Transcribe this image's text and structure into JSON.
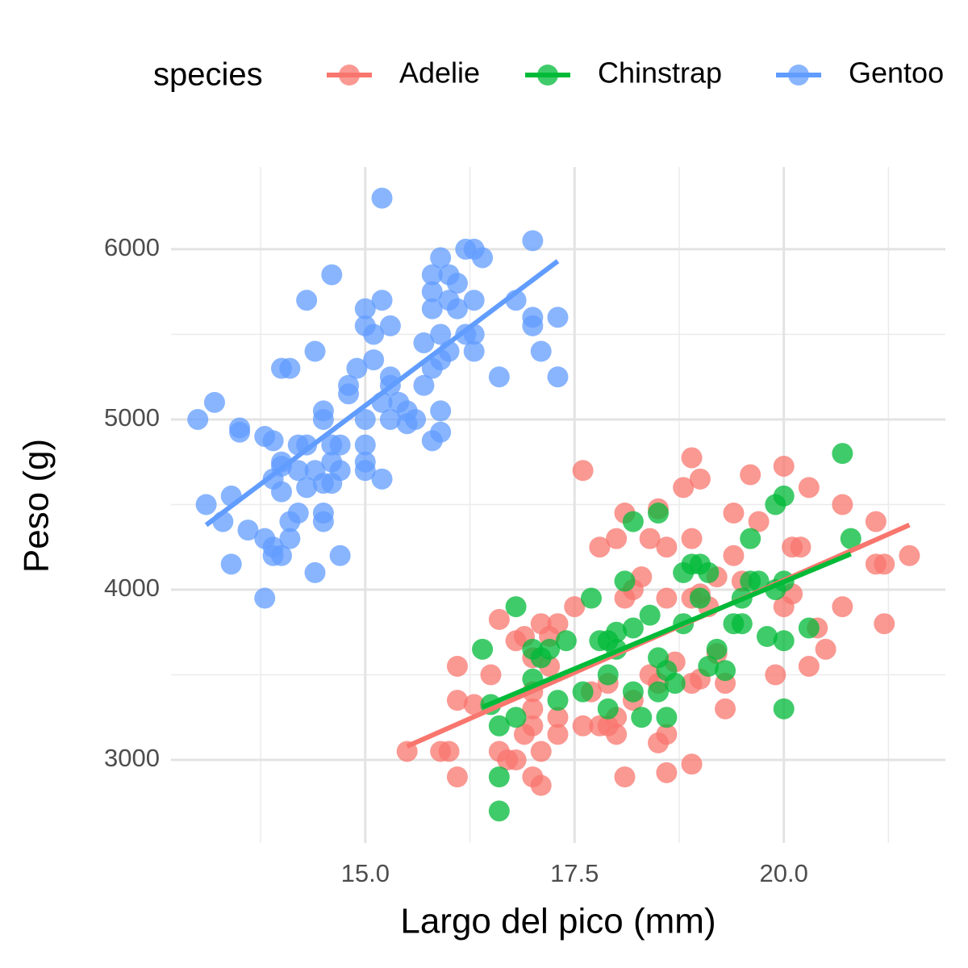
{
  "chart_data": {
    "type": "scatter",
    "x_label": "Largo del pico (mm)",
    "y_label": "Peso (g)",
    "legend_title": "species",
    "legend_position": "top",
    "grid": true,
    "xlim": [
      12.68,
      21.93
    ],
    "ylim": [
      2512,
      6483
    ],
    "xticks": [
      {
        "value": 15,
        "label": "15.0"
      },
      {
        "value": 17.5,
        "label": "17.5"
      },
      {
        "value": 20,
        "label": "20.0"
      }
    ],
    "xminor": [
      13.75,
      16.25,
      18.75,
      21.25
    ],
    "yticks": [
      3000,
      4000,
      5000,
      6000
    ],
    "yminor": [
      3500,
      4500,
      5500
    ],
    "series": [
      {
        "name": "Adelie",
        "color": "#F8766D",
        "x": [
          17.6,
          18.9,
          19.0,
          18.8,
          19.6,
          20.0,
          20.3,
          20.7,
          21.1,
          21.5,
          21.1,
          21.2,
          21.2,
          20.7,
          20.5,
          20.4,
          20.3,
          19.9,
          20.1,
          20.0,
          20.1,
          20.2,
          19.7,
          19.4,
          19.4,
          19.3,
          19.3,
          18.9,
          18.5,
          18.6,
          18.4,
          18.1,
          18.0,
          17.8,
          18.2,
          18.1,
          18.3,
          18.6,
          18.9,
          19.0,
          19.1,
          19.2,
          19.5,
          17.5,
          17.3,
          17.1,
          17.2,
          16.9,
          16.8,
          16.6,
          17.0,
          17.2,
          16.1,
          16.5,
          16.3,
          16.1,
          17.0,
          17.0,
          17.3,
          17.0,
          16.9,
          17.3,
          17.1,
          16.6,
          16.7,
          16.8,
          17.0,
          17.1,
          16.1,
          16.0,
          15.9,
          15.5,
          17.6,
          17.8,
          17.9,
          18.0,
          18.1,
          18.5,
          18.6,
          18.6,
          18.9,
          18.5,
          18.4,
          18.7,
          18.9,
          19.0,
          19.2,
          18.2,
          17.7,
          17.9,
          18.0
        ],
        "y": [
          4700,
          4775,
          4650,
          4600,
          4675,
          4725,
          4600,
          4500,
          4400,
          4200,
          4150,
          4150,
          3800,
          3900,
          3650,
          3775,
          3550,
          3500,
          3975,
          3900,
          4250,
          4250,
          4400,
          4450,
          4200,
          3450,
          3300,
          4300,
          4475,
          4250,
          4300,
          4450,
          4300,
          4250,
          4000,
          3950,
          4075,
          3950,
          3950,
          3975,
          3900,
          4075,
          4050,
          3900,
          3800,
          3800,
          3725,
          3725,
          3700,
          3825,
          3600,
          3550,
          3550,
          3500,
          3325,
          3350,
          3400,
          3300,
          3250,
          3200,
          3150,
          3150,
          3050,
          3050,
          3000,
          3000,
          2900,
          2850,
          2900,
          3050,
          3050,
          3050,
          3200,
          3200,
          3200,
          3150,
          2900,
          3100,
          3150,
          2925,
          2975,
          3450,
          3500,
          3575,
          3450,
          3475,
          3625,
          3350,
          3400,
          3450,
          3250
        ],
        "fit": {
          "x": [
            15.5,
            21.5
          ],
          "y": [
            3080,
            4380
          ]
        }
      },
      {
        "name": "Chinstrap",
        "color": "#00BA38",
        "x": [
          20.7,
          20.0,
          19.9,
          20.8,
          19.6,
          18.5,
          18.2,
          19.0,
          18.9,
          18.8,
          19.1,
          19.0,
          19.5,
          19.6,
          19.7,
          19.9,
          20.0,
          19.4,
          19.5,
          19.8,
          20.0,
          20.3,
          19.3,
          19.1,
          19.2,
          18.8,
          18.4,
          18.2,
          18.0,
          17.8,
          17.9,
          17.7,
          18.1,
          18.5,
          18.6,
          18.7,
          18.5,
          18.2,
          17.9,
          17.9,
          17.6,
          17.4,
          17.2,
          17.1,
          17.0,
          17.0,
          16.8,
          16.4,
          16.5,
          16.6,
          16.6,
          16.6,
          17.3,
          16.8,
          18.0,
          18.3,
          18.6,
          20.0
        ],
        "y": [
          4800,
          4550,
          4500,
          4300,
          4300,
          4450,
          4400,
          4150,
          4150,
          4100,
          4100,
          3950,
          3950,
          4050,
          4050,
          4000,
          4050,
          3800,
          3800,
          3725,
          3700,
          3775,
          3525,
          3550,
          3650,
          3800,
          3850,
          3775,
          3650,
          3700,
          3700,
          3950,
          4050,
          3600,
          3525,
          3450,
          3400,
          3400,
          3300,
          3500,
          3400,
          3700,
          3650,
          3600,
          3650,
          3475,
          3900,
          3650,
          3325,
          3200,
          2900,
          2700,
          3350,
          3250,
          3750,
          3250,
          3250,
          3300
        ],
        "fit": {
          "x": [
            16.4,
            20.8
          ],
          "y": [
            3310,
            4210
          ]
        }
      },
      {
        "name": "Gentoo",
        "color": "#619CFF",
        "x": [
          15.2,
          17.0,
          16.2,
          16.3,
          15.9,
          16.4,
          14.6,
          15.8,
          16.0,
          15.8,
          16.1,
          16.0,
          16.3,
          17.0,
          16.8,
          14.3,
          15.2,
          15.0,
          15.8,
          16.1,
          17.3,
          17.0,
          15.0,
          15.3,
          15.9,
          16.2,
          16.3,
          15.1,
          15.7,
          16.0,
          16.3,
          17.1,
          15.1,
          15.9,
          15.8,
          14.0,
          14.1,
          14.4,
          14.9,
          16.6,
          17.3,
          15.3,
          15.3,
          15.7,
          14.8,
          14.8,
          15.4,
          15.2,
          15.5,
          15.9,
          14.5,
          15.0,
          15.3,
          15.6,
          15.5,
          14.5,
          13.0,
          13.2,
          13.5,
          13.5,
          13.8,
          13.9,
          14.2,
          14.3,
          14.6,
          14.7,
          15.0,
          15.8,
          15.9,
          14.0,
          14.0,
          14.4,
          14.6,
          14.7,
          15.0,
          15.0,
          15.2,
          14.2,
          13.9,
          14.0,
          14.3,
          14.5,
          14.6,
          13.1,
          13.4,
          13.3,
          13.6,
          13.8,
          13.9,
          14.0,
          14.1,
          14.2,
          14.5,
          14.5,
          14.7,
          13.4,
          14.4,
          13.8,
          14.1,
          13.9
        ],
        "y": [
          6300,
          6050,
          6000,
          6000,
          5950,
          5950,
          5850,
          5850,
          5850,
          5750,
          5800,
          5700,
          5700,
          5600,
          5700,
          5700,
          5700,
          5650,
          5650,
          5650,
          5600,
          5550,
          5550,
          5550,
          5500,
          5500,
          5500,
          5500,
          5450,
          5400,
          5400,
          5400,
          5350,
          5350,
          5300,
          5300,
          5300,
          5400,
          5300,
          5250,
          5250,
          5250,
          5200,
          5200,
          5200,
          5150,
          5100,
          5100,
          5050,
          5050,
          5050,
          5000,
          5000,
          5000,
          4975,
          5000,
          5000,
          5100,
          4950,
          4925,
          4900,
          4875,
          4850,
          4850,
          4850,
          4850,
          4850,
          4875,
          4925,
          4750,
          4725,
          4700,
          4750,
          4700,
          4750,
          4700,
          4650,
          4700,
          4650,
          4575,
          4600,
          4625,
          4625,
          4500,
          4550,
          4400,
          4350,
          4300,
          4200,
          4200,
          4400,
          4450,
          4400,
          4450,
          4200,
          4150,
          4100,
          3950,
          4300,
          4250
        ],
        "fit": {
          "x": [
            13.1,
            17.3
          ],
          "y": [
            4380,
            5930
          ]
        }
      }
    ]
  }
}
